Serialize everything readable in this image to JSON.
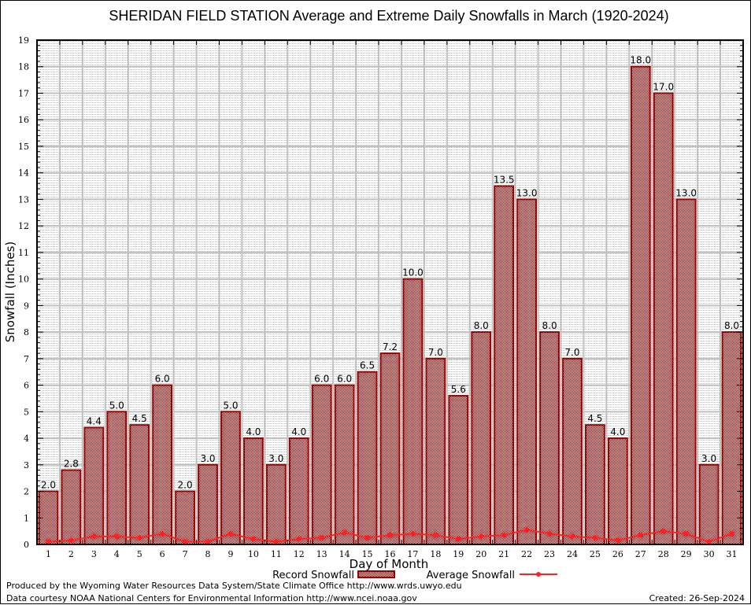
{
  "chart_data": {
    "type": "bar",
    "title": "SHERIDAN FIELD STATION Average and Extreme Daily Snowfalls in March (1920-2024)",
    "xlabel": "Day of Month",
    "ylabel": "Snowfall (Inches)",
    "ylim": [
      0,
      19
    ],
    "yticks": [
      0,
      1,
      2,
      3,
      4,
      5,
      6,
      7,
      8,
      9,
      10,
      11,
      12,
      13,
      14,
      15,
      16,
      17,
      18,
      19
    ],
    "categories": [
      "1",
      "2",
      "3",
      "4",
      "5",
      "6",
      "7",
      "8",
      "9",
      "10",
      "11",
      "12",
      "13",
      "14",
      "15",
      "16",
      "17",
      "18",
      "19",
      "20",
      "21",
      "22",
      "23",
      "24",
      "25",
      "26",
      "27",
      "28",
      "29",
      "30",
      "31"
    ],
    "grid": true,
    "legend_position": "bottom-center",
    "series": [
      {
        "name": "Record Snowfall",
        "type": "bar",
        "color": "#990000",
        "values": [
          2.0,
          2.8,
          4.4,
          5.0,
          4.5,
          6.0,
          2.0,
          3.0,
          5.0,
          4.0,
          3.0,
          4.0,
          6.0,
          6.0,
          6.5,
          7.2,
          10.0,
          7.0,
          5.6,
          8.0,
          13.5,
          13.0,
          8.0,
          7.0,
          4.5,
          4.0,
          18.0,
          17.0,
          13.0,
          3.0,
          8.0
        ],
        "labels": [
          "2.0",
          "2.8",
          "4.4",
          "5.0",
          "4.5",
          "6.0",
          "2.0",
          "3.0",
          "5.0",
          "4.0",
          "3.0",
          "4.0",
          "6.0",
          "6.0",
          "6.5",
          "7.2",
          "10.0",
          "7.0",
          "5.6",
          "8.0",
          "13.5",
          "13.0",
          "8.0",
          "7.0",
          "4.5",
          "4.0",
          "18.0",
          "17.0",
          "13.0",
          "3.0",
          "8.0"
        ]
      },
      {
        "name": "Average Snowfall",
        "type": "line",
        "color": "#ff2020",
        "values": [
          0.1,
          0.15,
          0.3,
          0.3,
          0.25,
          0.4,
          0.1,
          0.1,
          0.4,
          0.2,
          0.1,
          0.2,
          0.25,
          0.45,
          0.25,
          0.35,
          0.4,
          0.35,
          0.2,
          0.3,
          0.35,
          0.55,
          0.4,
          0.3,
          0.25,
          0.15,
          0.35,
          0.5,
          0.4,
          0.1,
          0.4
        ]
      }
    ]
  },
  "footer": {
    "line1": "Produced by the Wyoming Water Resources Data System/State Climate Office http://www.wrds.uwyo.edu",
    "line2": "Data courtesy NOAA National Centers for Environmental Information http://www.ncei.noaa.gov",
    "created": "Created: 26-Sep-2024"
  }
}
